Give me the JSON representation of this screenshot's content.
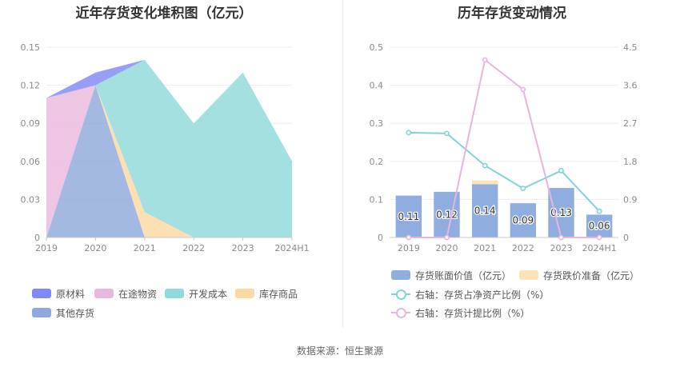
{
  "left": {
    "title": "近年存货变化堆积图（亿元）",
    "legend": [
      {
        "label": "原材料",
        "color": "#8189f4"
      },
      {
        "label": "在途物资",
        "color": "#e8b9dc"
      },
      {
        "label": "开发成本",
        "color": "#91d9db"
      },
      {
        "label": "库存商品",
        "color": "#fbd9a4"
      },
      {
        "label": "其他存货",
        "color": "#8fa9dc"
      }
    ]
  },
  "right": {
    "title": "历年存货变动情况",
    "legend": [
      {
        "label": "存货账面价值（亿元）",
        "color": "#8fadde"
      },
      {
        "label": "存货跌价准备（亿元）",
        "color": "#fde3b8"
      },
      {
        "label": "右轴：存货占净资产比例（%）",
        "color": "#7fd3d9"
      },
      {
        "label": "右轴：存货计提比例（%）",
        "color": "#e6b6dd"
      }
    ]
  },
  "source": "数据来源：恒生聚源",
  "chart_data": [
    {
      "type": "area",
      "stacked": true,
      "title": "近年存货变化堆积图（亿元）",
      "categories": [
        "2019",
        "2020",
        "2021",
        "2022",
        "2023",
        "2024H1"
      ],
      "ylim": [
        0,
        0.15
      ],
      "yticks": [
        "0",
        "0.03",
        "0.06",
        "0.09",
        "0.12",
        "0.15"
      ],
      "series": [
        {
          "name": "其他存货",
          "values": [
            0,
            0.12,
            0,
            0,
            0,
            0
          ],
          "color": "#8fa9dc"
        },
        {
          "name": "库存商品",
          "values": [
            0,
            0,
            0.02,
            0,
            0,
            0
          ],
          "color": "#fbd9a4"
        },
        {
          "name": "开发成本",
          "values": [
            0,
            0,
            0.12,
            0.09,
            0.13,
            0.06
          ],
          "color": "#91d9db"
        },
        {
          "name": "在途物资",
          "values": [
            0.11,
            0,
            0,
            0,
            0,
            0
          ],
          "color": "#e8b9dc"
        },
        {
          "name": "原材料",
          "values": [
            0,
            0.01,
            0,
            0,
            0,
            0
          ],
          "color": "#8189f4"
        }
      ],
      "grid": true,
      "legend_position": "bottom-left"
    },
    {
      "type": "bar",
      "title": "历年存货变动情况",
      "categories": [
        "2019",
        "2020",
        "2021",
        "2022",
        "2023",
        "2024H1"
      ],
      "ylim": [
        0,
        0.5
      ],
      "yticks": [
        "0",
        "0.1",
        "0.2",
        "0.3",
        "0.4",
        "0.5"
      ],
      "y2lim": [
        0,
        4.5
      ],
      "y2ticks": [
        "0",
        "0.9",
        "1.8",
        "2.7",
        "3.6",
        "4.5"
      ],
      "series": [
        {
          "name": "存货账面价值（亿元）",
          "values": [
            0.11,
            0.12,
            0.14,
            0.09,
            0.13,
            0.06
          ],
          "labels": [
            "0.11",
            "0.12",
            "0.14",
            "0.09",
            "0.13",
            "0.06"
          ],
          "color": "#8fadde",
          "kind": "bar"
        },
        {
          "name": "存货跌价准备（亿元）",
          "values": [
            0,
            0,
            0.01,
            0,
            0,
            0
          ],
          "color": "#fde3b8",
          "kind": "bar"
        },
        {
          "name": "右轴：存货占净资产比例（%）",
          "values": [
            2.48,
            2.46,
            1.7,
            1.16,
            1.58,
            0.62
          ],
          "color": "#7fd3d9",
          "kind": "line",
          "axis": "right"
        },
        {
          "name": "右轴：存货计提比例（%）",
          "values": [
            0,
            0,
            4.2,
            3.5,
            0,
            0
          ],
          "color": "#e6b6dd",
          "kind": "line",
          "axis": "right"
        }
      ],
      "grid": true,
      "legend_position": "bottom"
    }
  ]
}
